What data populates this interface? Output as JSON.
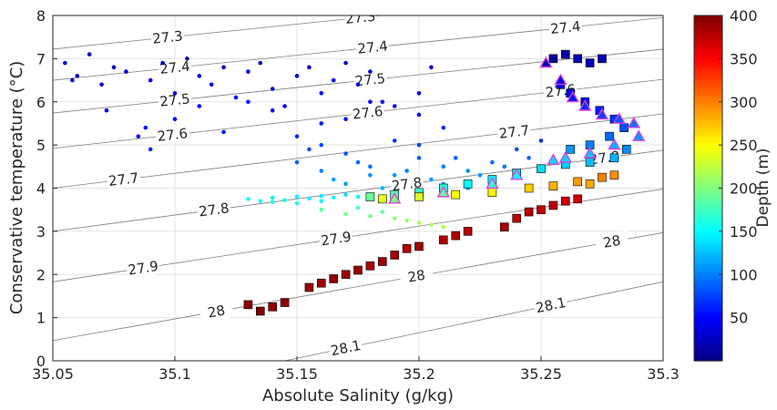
{
  "chart_data": {
    "type": "scatter",
    "xlabel": "Absolute Salinity (g/kg)",
    "ylabel": "Conservative temperature (°C)",
    "colorbar_label": "Depth (m)",
    "xlim": [
      35.05,
      35.3
    ],
    "xticks": [
      35.05,
      35.1,
      35.15,
      35.2,
      35.25,
      35.3
    ],
    "ylim": [
      0,
      8
    ],
    "yticks": [
      0,
      1,
      2,
      3,
      4,
      5,
      6,
      7,
      8
    ],
    "clim": [
      0,
      400
    ],
    "cticks": [
      50,
      100,
      150,
      200,
      250,
      300,
      350,
      400
    ],
    "colormap": "jet",
    "grid": true,
    "contour_color": "#7f7f7f",
    "contours": [
      {
        "level": 27.3,
        "x": [
          35.05,
          35.3
        ],
        "y": [
          7.22,
          8.67
        ]
      },
      {
        "level": 27.4,
        "x": [
          35.05,
          35.3
        ],
        "y": [
          6.5,
          7.95
        ]
      },
      {
        "level": 27.5,
        "x": [
          35.05,
          35.3
        ],
        "y": [
          5.74,
          7.22
        ]
      },
      {
        "level": 27.6,
        "x": [
          35.05,
          35.3
        ],
        "y": [
          4.92,
          6.52
        ]
      },
      {
        "level": 27.7,
        "x": [
          35.05,
          35.3
        ],
        "y": [
          4.0,
          5.72
        ]
      },
      {
        "level": 27.8,
        "x": [
          35.05,
          35.3
        ],
        "y": [
          3.0,
          4.88
        ]
      },
      {
        "level": 27.9,
        "x": [
          35.05,
          35.3
        ],
        "y": [
          1.83,
          3.98
        ]
      },
      {
        "level": 28,
        "x": [
          35.05,
          35.3
        ],
        "y": [
          0.47,
          2.97
        ]
      },
      {
        "level": 28.1,
        "x": [
          35.145,
          35.3
        ],
        "y": [
          0,
          1.83
        ]
      }
    ],
    "series": [
      {
        "marker": "circle",
        "edge": "none",
        "x": [
          35.055,
          35.06,
          35.065,
          35.07,
          35.075,
          35.08,
          35.085,
          35.09,
          35.095,
          35.1,
          35.105,
          35.11,
          35.115,
          35.12,
          35.125,
          35.13,
          35.135,
          35.14,
          35.145,
          35.15,
          35.155,
          35.16,
          35.165,
          35.17,
          35.175,
          35.18,
          35.185,
          35.058,
          35.072,
          35.088,
          35.1,
          35.12,
          35.14,
          35.16,
          35.18,
          35.19,
          35.2,
          35.21,
          35.11,
          35.13,
          35.15,
          35.17,
          35.2,
          35.205,
          35.09,
          35.15,
          35.16,
          35.17,
          35.18,
          35.19,
          35.2,
          35.21,
          35.22,
          35.23,
          35.24,
          35.25,
          35.155,
          35.165,
          35.175,
          35.185,
          35.195,
          35.205,
          35.215,
          35.225,
          35.235,
          35.245,
          35.2,
          35.19,
          35.21,
          35.22,
          35.18,
          35.17,
          35.23,
          35.24,
          35.16,
          35.13,
          35.135,
          35.14,
          35.145,
          35.15,
          35.155,
          35.16,
          35.165,
          35.17,
          35.175,
          35.14,
          35.15,
          35.16,
          35.18,
          35.16,
          35.17,
          35.18,
          35.19,
          35.2,
          35.21,
          35.175,
          35.195,
          35.205,
          35.185
        ],
        "y": [
          6.9,
          6.6,
          7.1,
          6.4,
          6.8,
          6.7,
          5.2,
          6.5,
          6.9,
          6.2,
          7.0,
          6.6,
          6.4,
          6.8,
          6.1,
          6.7,
          6.9,
          6.3,
          5.9,
          6.6,
          6.8,
          6.2,
          6.5,
          6.9,
          6.4,
          6.7,
          6.0,
          6.5,
          5.8,
          5.4,
          5.6,
          5.3,
          5.8,
          5.5,
          6.0,
          5.9,
          5.7,
          5.4,
          5.9,
          6.0,
          5.2,
          5.6,
          6.2,
          6.8,
          4.9,
          4.6,
          4.4,
          4.8,
          4.5,
          4.3,
          4.7,
          4.5,
          4.4,
          4.6,
          4.9,
          5.1,
          4.9,
          4.2,
          4.6,
          4.0,
          4.4,
          4.2,
          4.7,
          4.3,
          4.5,
          4.7,
          5.0,
          5.1,
          4.1,
          4.0,
          4.3,
          4.1,
          4.2,
          4.3,
          5.0,
          3.75,
          3.7,
          3.78,
          3.72,
          3.8,
          3.76,
          3.82,
          3.78,
          3.85,
          3.8,
          3.68,
          3.65,
          3.7,
          3.75,
          3.5,
          3.4,
          3.35,
          3.3,
          3.2,
          3.1,
          3.55,
          3.25,
          3.15,
          3.45
        ],
        "depth": [
          30,
          35,
          25,
          40,
          30,
          32,
          50,
          38,
          28,
          42,
          26,
          34,
          40,
          30,
          45,
          33,
          28,
          41,
          48,
          36,
          30,
          44,
          38,
          27,
          40,
          33,
          47,
          36,
          46,
          52,
          55,
          60,
          50,
          58,
          48,
          50,
          56,
          62,
          52,
          50,
          64,
          57,
          45,
          32,
          66,
          90,
          100,
          85,
          95,
          110,
          88,
          98,
          105,
          92,
          80,
          70,
          80,
          115,
          90,
          120,
          100,
          112,
          88,
          108,
          98,
          90,
          75,
          72,
          115,
          118,
          108,
          112,
          112,
          110,
          78,
          150,
          155,
          148,
          152,
          145,
          150,
          142,
          148,
          140,
          146,
          158,
          160,
          156,
          150,
          185,
          195,
          200,
          205,
          215,
          220,
          180,
          210,
          218,
          190
        ]
      },
      {
        "marker": "square",
        "edge": "#000000",
        "x": [
          35.255,
          35.26,
          35.265,
          35.27,
          35.275,
          35.258,
          35.262,
          35.268,
          35.274,
          35.28,
          35.284,
          35.278,
          35.27,
          35.262,
          35.18,
          35.19,
          35.2,
          35.21,
          35.22,
          35.23,
          35.24,
          35.25,
          35.26,
          35.27,
          35.28,
          35.285,
          35.185,
          35.2,
          35.215,
          35.23,
          35.245,
          35.255,
          35.265,
          35.275,
          35.28,
          35.27,
          35.13,
          35.135,
          35.14,
          35.145,
          35.155,
          35.16,
          35.165,
          35.17,
          35.175,
          35.18,
          35.185,
          35.19,
          35.195,
          35.2,
          35.21,
          35.215,
          35.22,
          35.235,
          35.24,
          35.245,
          35.25,
          35.255,
          35.26,
          35.265
        ],
        "y": [
          7.0,
          7.1,
          7.0,
          6.9,
          7.0,
          6.4,
          6.2,
          6.0,
          5.8,
          5.6,
          5.4,
          5.2,
          5.0,
          4.9,
          3.8,
          3.85,
          3.9,
          4.0,
          4.1,
          4.2,
          4.35,
          4.45,
          4.55,
          4.6,
          4.7,
          4.9,
          3.75,
          3.8,
          3.85,
          3.9,
          4.0,
          4.05,
          4.15,
          4.25,
          4.3,
          4.1,
          1.3,
          1.15,
          1.25,
          1.35,
          1.7,
          1.8,
          1.9,
          2.0,
          2.1,
          2.2,
          2.3,
          2.45,
          2.6,
          2.65,
          2.8,
          2.9,
          3.0,
          3.1,
          3.3,
          3.45,
          3.5,
          3.6,
          3.7,
          3.75
        ],
        "depth": [
          10,
          15,
          20,
          25,
          22,
          35,
          40,
          50,
          60,
          70,
          80,
          90,
          100,
          110,
          190,
          180,
          170,
          165,
          150,
          145,
          140,
          135,
          130,
          125,
          120,
          105,
          240,
          235,
          250,
          255,
          270,
          280,
          290,
          300,
          295,
          285,
          395,
          398,
          392,
          394,
          390,
          388,
          392,
          386,
          390,
          384,
          388,
          385,
          382,
          386,
          380,
          384,
          378,
          382,
          376,
          380,
          374,
          378,
          372,
          370
        ]
      },
      {
        "marker": "triangle",
        "edge": "#e040e0",
        "x": [
          35.252,
          35.258,
          35.263,
          35.268,
          35.275,
          35.282,
          35.288,
          35.29,
          35.28,
          35.27,
          35.26,
          35.255,
          35.24,
          35.23,
          35.21,
          35.19
        ],
        "y": [
          6.9,
          6.5,
          6.1,
          5.9,
          5.7,
          5.6,
          5.5,
          5.2,
          5.0,
          4.8,
          4.7,
          4.65,
          4.3,
          4.1,
          3.9,
          3.75
        ],
        "depth": [
          20,
          40,
          55,
          65,
          75,
          85,
          95,
          110,
          120,
          128,
          132,
          135,
          150,
          170,
          190,
          200
        ]
      }
    ]
  }
}
